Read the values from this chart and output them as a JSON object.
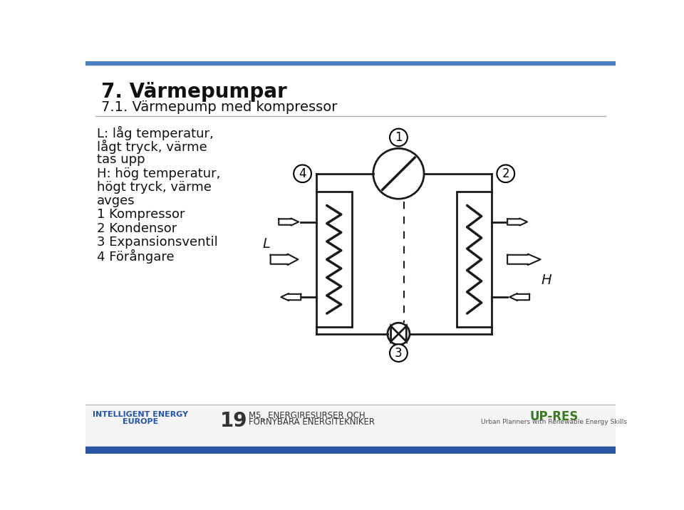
{
  "title1": "7. Värmepumpar",
  "title2": "7.1. Värmepump med kompressor",
  "legend_lines": [
    "L: låg temperatur,",
    "lågt tryck, värme",
    "tas upp",
    "H: hög temperatur,",
    "högt tryck, värme",
    "avges",
    "1 Kompressor",
    "2 Kondensor",
    "3 Expansionsventil",
    "4 Förångare"
  ],
  "label_L": "L",
  "label_H": "H",
  "bg_color": "#ffffff",
  "diagram_color": "#1a1a1a",
  "header_bg": "#4a7fc0",
  "footer_bg": "#2a55a0",
  "footer_text_num": "19",
  "footer_text_course": "M5_ ENERGIRESURSER OCH",
  "footer_text_course2": "FÖRNYBARA ENERGITEKNIKER",
  "footer_ie_line1": "INTELLIGENT ENERGY",
  "footer_ie_line2": "EUROPE",
  "footer_upres": "UP-RES",
  "footer_upres_sub": "Urban Planners with Renewable Energy Skills"
}
